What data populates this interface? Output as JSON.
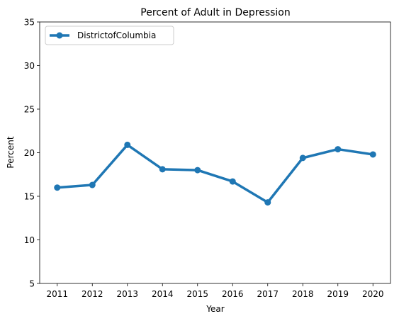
{
  "chart_data": {
    "type": "line",
    "title": "Percent of Adult in Depression",
    "xlabel": "Year",
    "ylabel": "Percent",
    "categories": [
      "2011",
      "2012",
      "2013",
      "2014",
      "2015",
      "2016",
      "2017",
      "2018",
      "2019",
      "2020"
    ],
    "series": [
      {
        "name": "DistrictofColumbia",
        "values": [
          16.0,
          16.3,
          20.9,
          18.1,
          18.0,
          16.7,
          14.3,
          19.4,
          20.4,
          19.8
        ],
        "color": "#1f77b4"
      }
    ],
    "ylim": [
      5,
      35
    ],
    "yticks": [
      5,
      10,
      15,
      20,
      25,
      30,
      35
    ],
    "grid": false,
    "legend_position": "upper-left"
  }
}
